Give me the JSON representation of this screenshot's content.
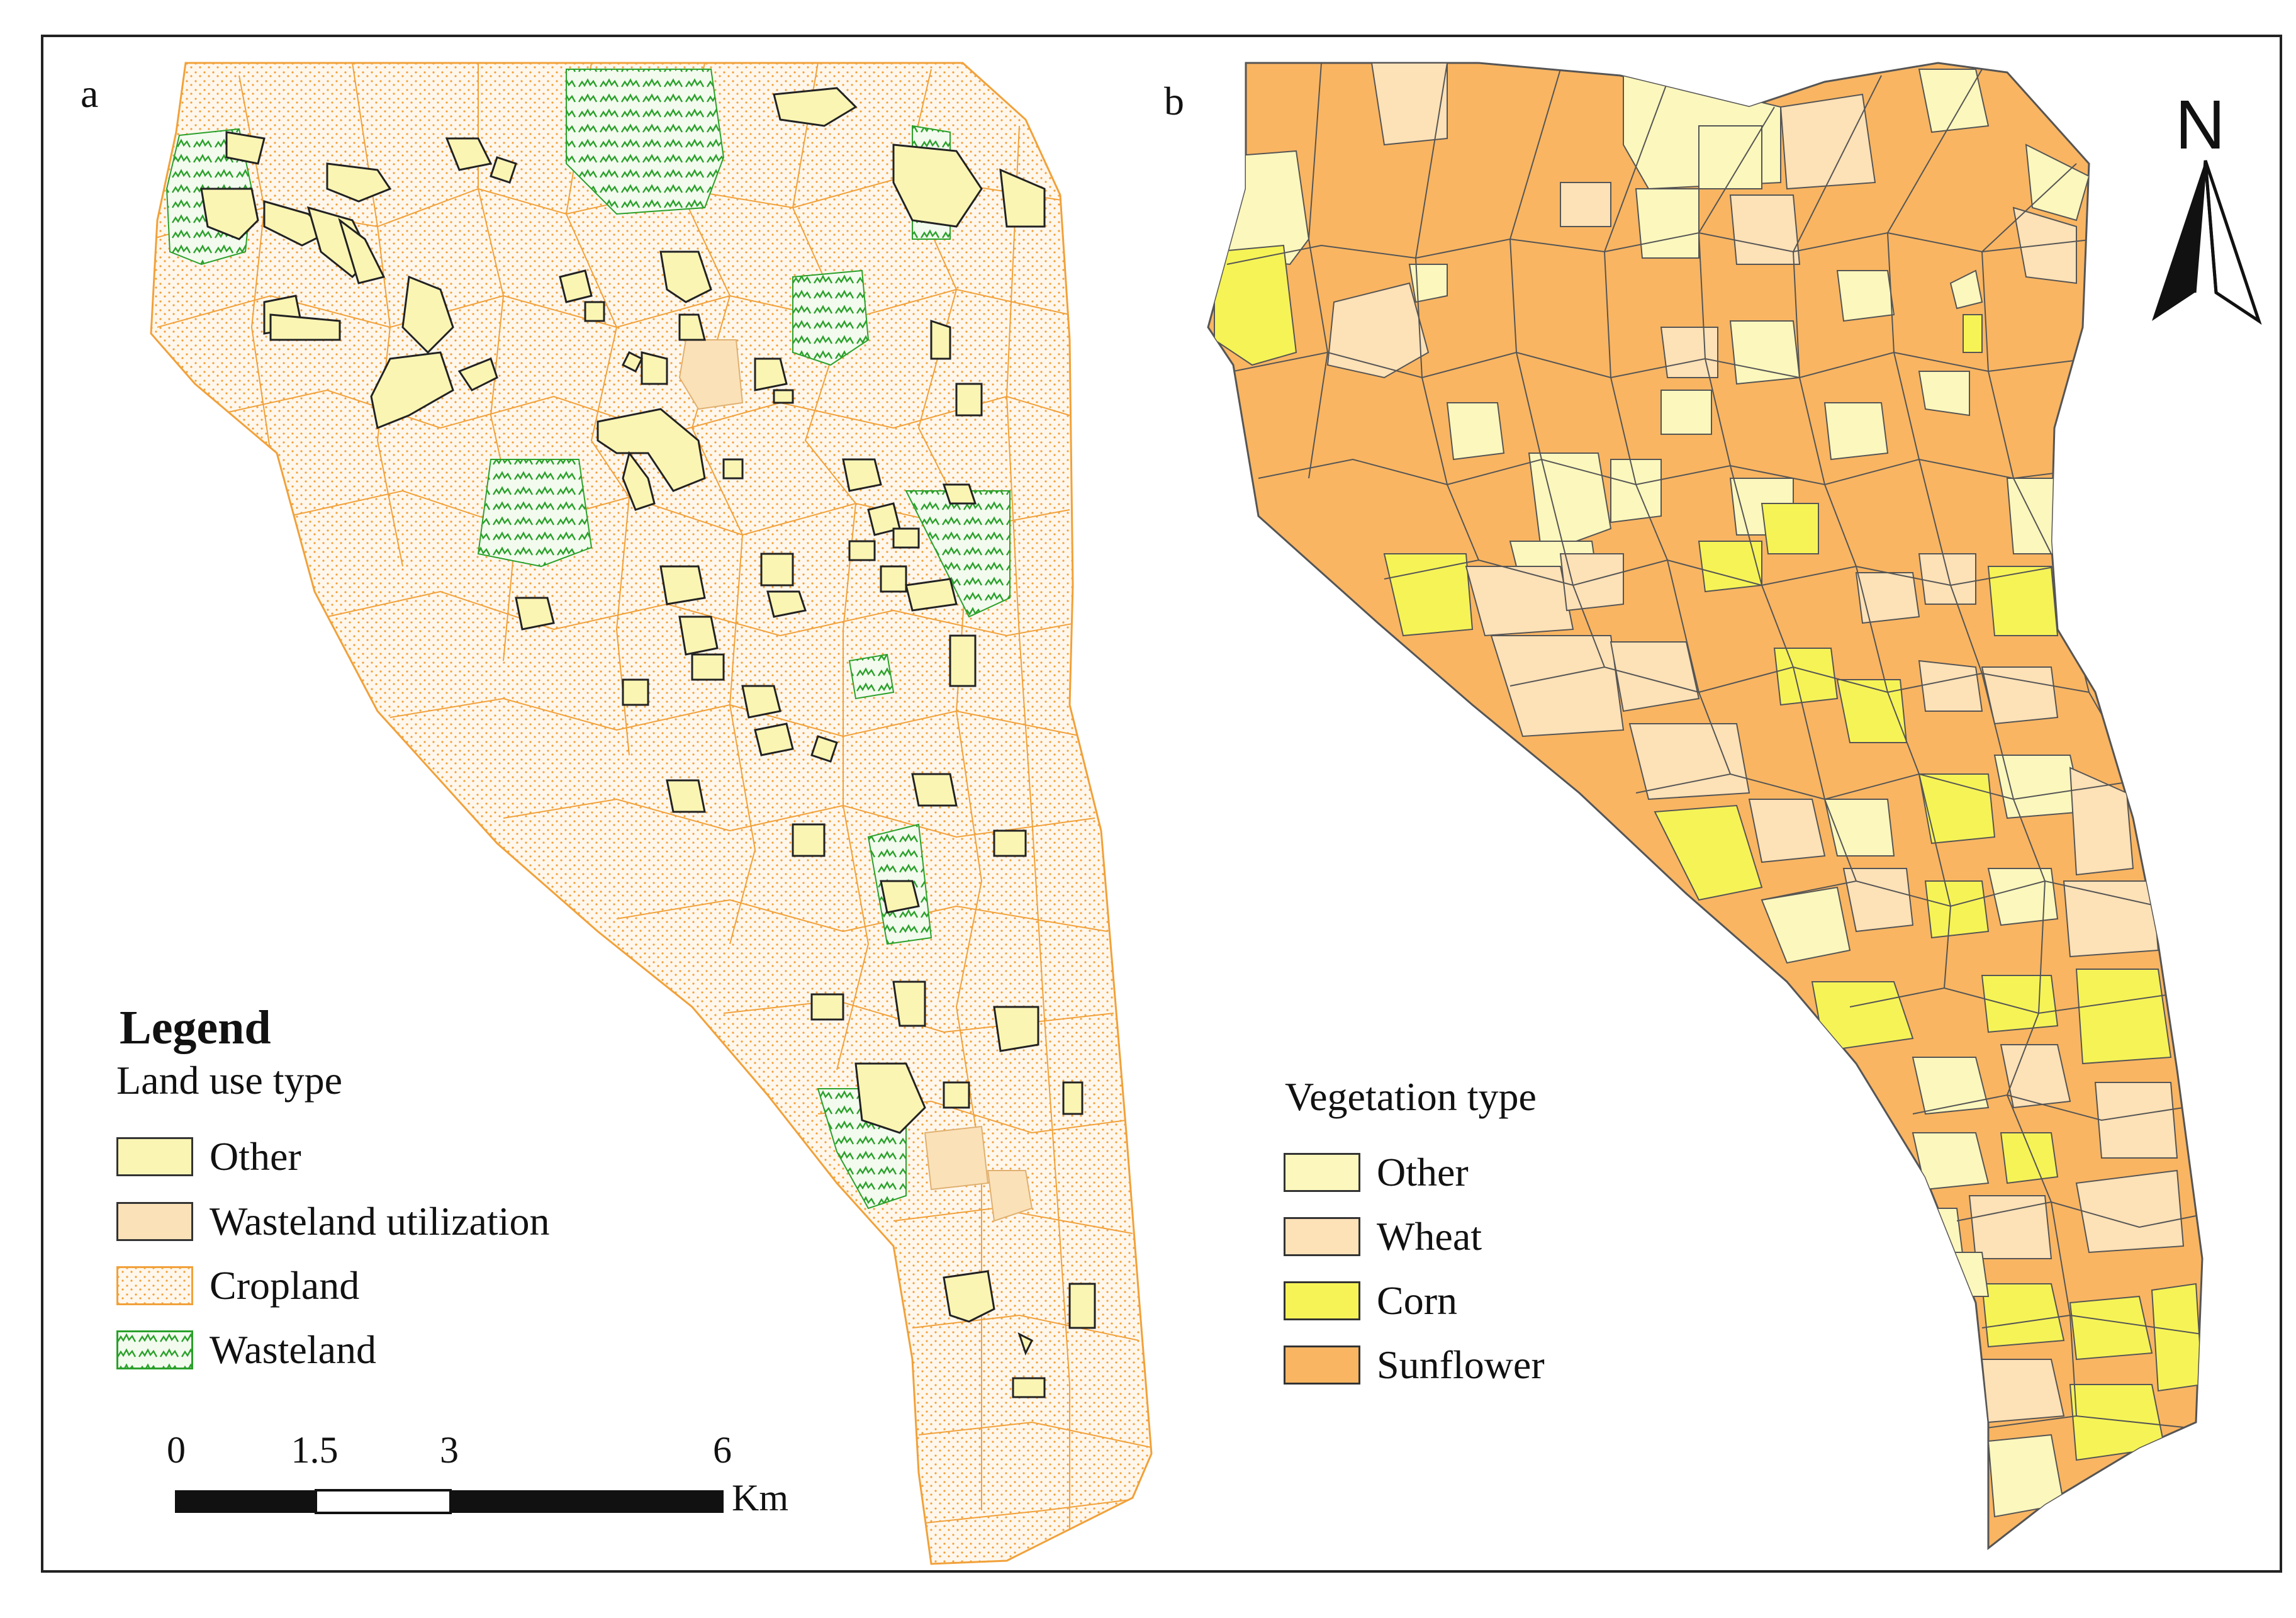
{
  "panels": {
    "a_label": "a",
    "b_label": "b"
  },
  "legend_a": {
    "title": "Legend",
    "subtitle": "Land use type",
    "items": [
      {
        "label": "Other",
        "color": "#fbf5b4"
      },
      {
        "label": "Wasteland utilization",
        "color": "#fbe1b8"
      },
      {
        "label": "Cropland",
        "color": "#fdeedd"
      },
      {
        "label": "Wasteland",
        "color": "#dff0d8"
      }
    ]
  },
  "legend_b": {
    "subtitle": "Vegetation type",
    "items": [
      {
        "label": "Other",
        "color": "#fcf7bd"
      },
      {
        "label": "Wheat",
        "color": "#fde1b7"
      },
      {
        "label": "Corn",
        "color": "#f6f357"
      },
      {
        "label": "Sunflower",
        "color": "#f9b562"
      }
    ]
  },
  "scale_bar": {
    "ticks": [
      "0",
      "1.5",
      "3",
      "6"
    ],
    "unit": "Km"
  },
  "north_arrow": {
    "letter": "N",
    "icon": "north-arrow-icon"
  },
  "colors": {
    "cropland_dot": "#f1a13a",
    "cropland_line": "#f1a13a",
    "wasteland_green": "#2aa02a",
    "other": "#fbf5b4",
    "wasteland_utilization": "#fbe1b8",
    "veg_other": "#fcf7bd",
    "veg_wheat": "#fde1b7",
    "veg_corn": "#f6f357",
    "veg_sunflower": "#f9b562"
  }
}
